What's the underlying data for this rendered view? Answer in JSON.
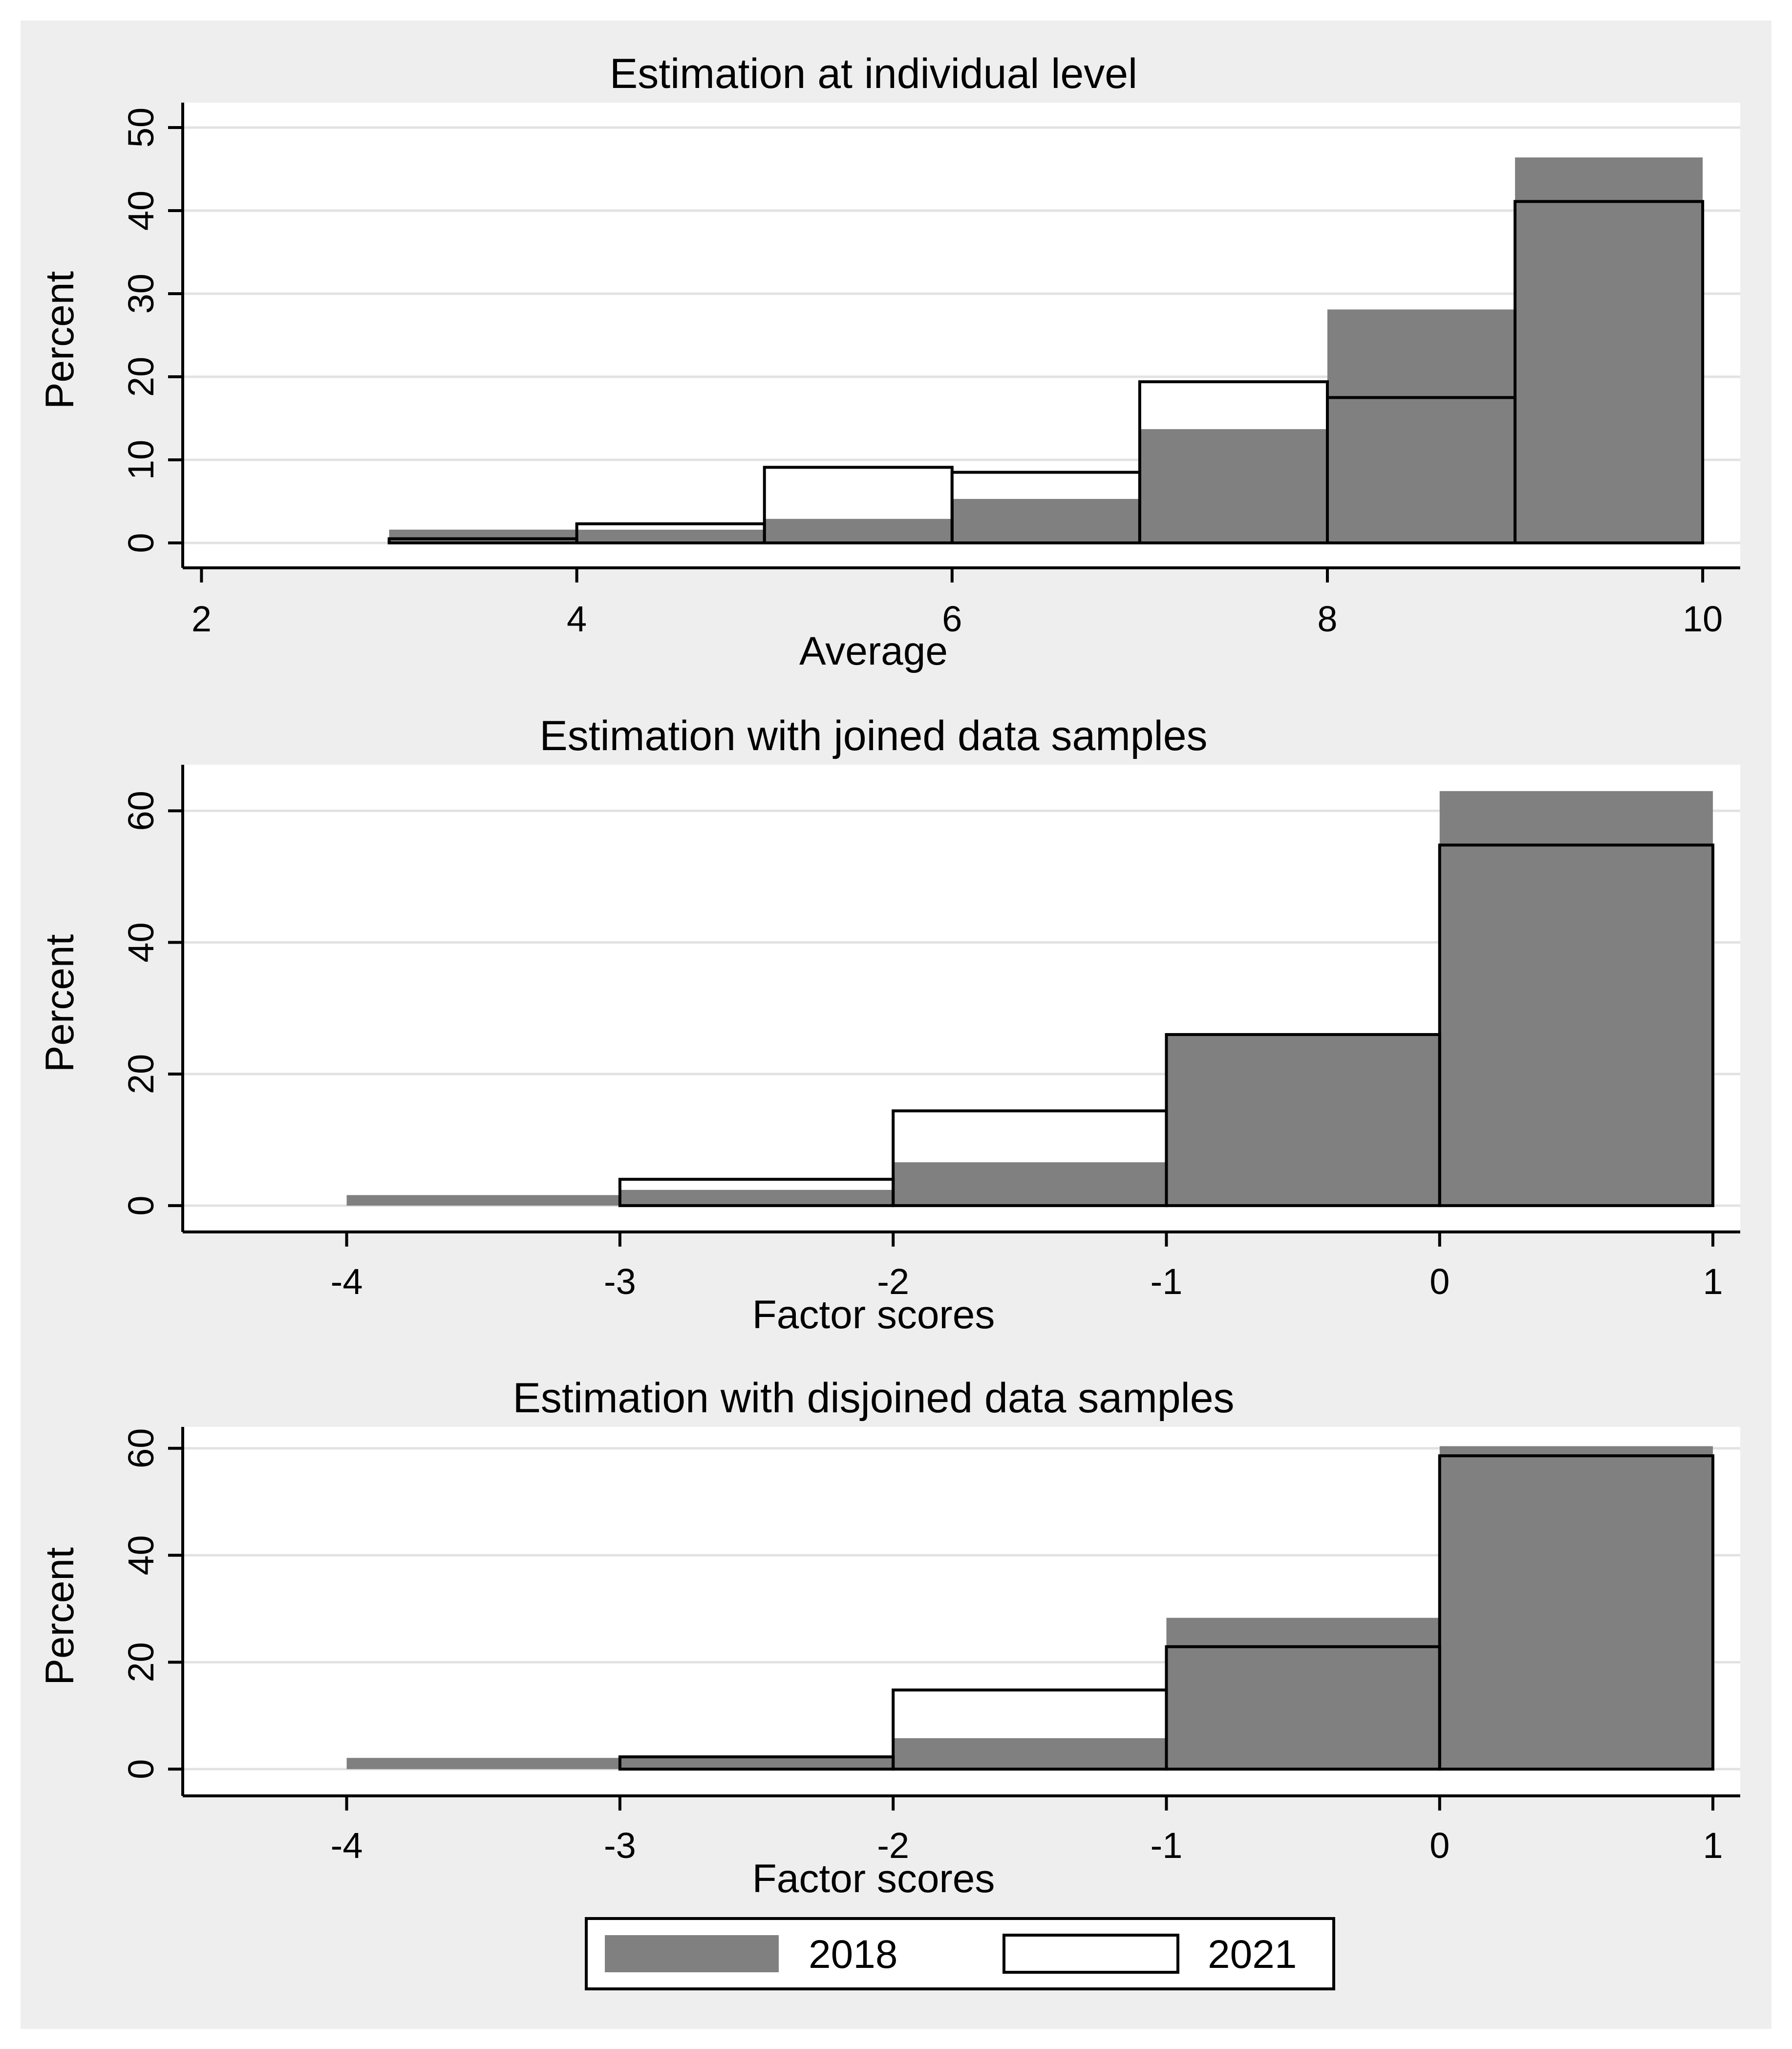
{
  "colors": {
    "outer_background": "#eeeeee",
    "plot_background": "#ffffff",
    "gridline": "#e2e2e2",
    "series_2018": "#808080",
    "series_2021": "#ffffff",
    "outline": "#000000"
  },
  "legend": {
    "items": [
      {
        "label": "2018",
        "color": "#808080"
      },
      {
        "label": "2021",
        "color": "#ffffff"
      }
    ]
  },
  "chart_data": [
    {
      "type": "bar",
      "title": "Estimation at individual level",
      "xlabel": "Average",
      "ylabel": "Percent",
      "xlim": [
        1.9,
        10.2
      ],
      "ylim": [
        -3,
        53
      ],
      "xticks": [
        2,
        4,
        6,
        8,
        10
      ],
      "xtick_labels": [
        "2",
        "4",
        "6",
        "8",
        "10"
      ],
      "yticks": [
        0,
        10,
        20,
        30,
        40,
        50
      ],
      "ytick_labels": [
        "0",
        "10",
        "20",
        "30",
        "40",
        "50"
      ],
      "grid": true,
      "bins": [
        [
          3,
          4
        ],
        [
          4,
          5
        ],
        [
          5,
          6
        ],
        [
          6,
          7
        ],
        [
          7,
          8
        ],
        [
          8,
          9
        ],
        [
          9,
          10
        ]
      ],
      "series": [
        {
          "name": "2018",
          "values": [
            1.6,
            1.6,
            2.9,
            5.3,
            13.7,
            28.1,
            46.4
          ]
        },
        {
          "name": "2021",
          "values": [
            0.5,
            2.3,
            9.1,
            8.5,
            19.4,
            17.5,
            41.1
          ]
        }
      ]
    },
    {
      "type": "bar",
      "title": "Estimation with joined data samples",
      "xlabel": "Factor scores",
      "ylabel": "Percent",
      "xlim": [
        -4.6,
        1.1
      ],
      "ylim": [
        -4,
        67
      ],
      "xticks": [
        -4,
        -3,
        -2,
        -1,
        0,
        1
      ],
      "xtick_labels": [
        "-4",
        "-3",
        "-2",
        "-1",
        "0",
        "1"
      ],
      "yticks": [
        0,
        20,
        40,
        60
      ],
      "ytick_labels": [
        "0",
        "20",
        "40",
        "60"
      ],
      "grid": true,
      "bins": [
        [
          -4,
          -3
        ],
        [
          -3,
          -2
        ],
        [
          -2,
          -1
        ],
        [
          -1,
          0
        ],
        [
          0,
          1
        ]
      ],
      "series": [
        {
          "name": "2018",
          "values": [
            1.6,
            2.4,
            6.6,
            26.0,
            63.0
          ]
        },
        {
          "name": "2021",
          "values": [
            0,
            4.0,
            14.4,
            26.0,
            54.8
          ]
        }
      ]
    },
    {
      "type": "bar",
      "title": "Estimation with disjoined data samples",
      "xlabel": "Factor scores",
      "ylabel": "Percent",
      "xlim": [
        -4.6,
        1.1
      ],
      "ylim": [
        -5,
        64
      ],
      "xticks": [
        -4,
        -3,
        -2,
        -1,
        0,
        1
      ],
      "xtick_labels": [
        "-4",
        "-3",
        "-2",
        "-1",
        "0",
        "1"
      ],
      "yticks": [
        0,
        20,
        40,
        60
      ],
      "ytick_labels": [
        "0",
        "20",
        "40",
        "60"
      ],
      "grid": true,
      "bins": [
        [
          -4,
          -3
        ],
        [
          -3,
          -2
        ],
        [
          -2,
          -1
        ],
        [
          -1,
          0
        ],
        [
          0,
          1
        ]
      ],
      "series": [
        {
          "name": "2018",
          "values": [
            2.1,
            2.5,
            5.8,
            28.3,
            60.4
          ]
        },
        {
          "name": "2021",
          "values": [
            0,
            2.3,
            14.8,
            22.9,
            58.6
          ]
        }
      ]
    }
  ]
}
